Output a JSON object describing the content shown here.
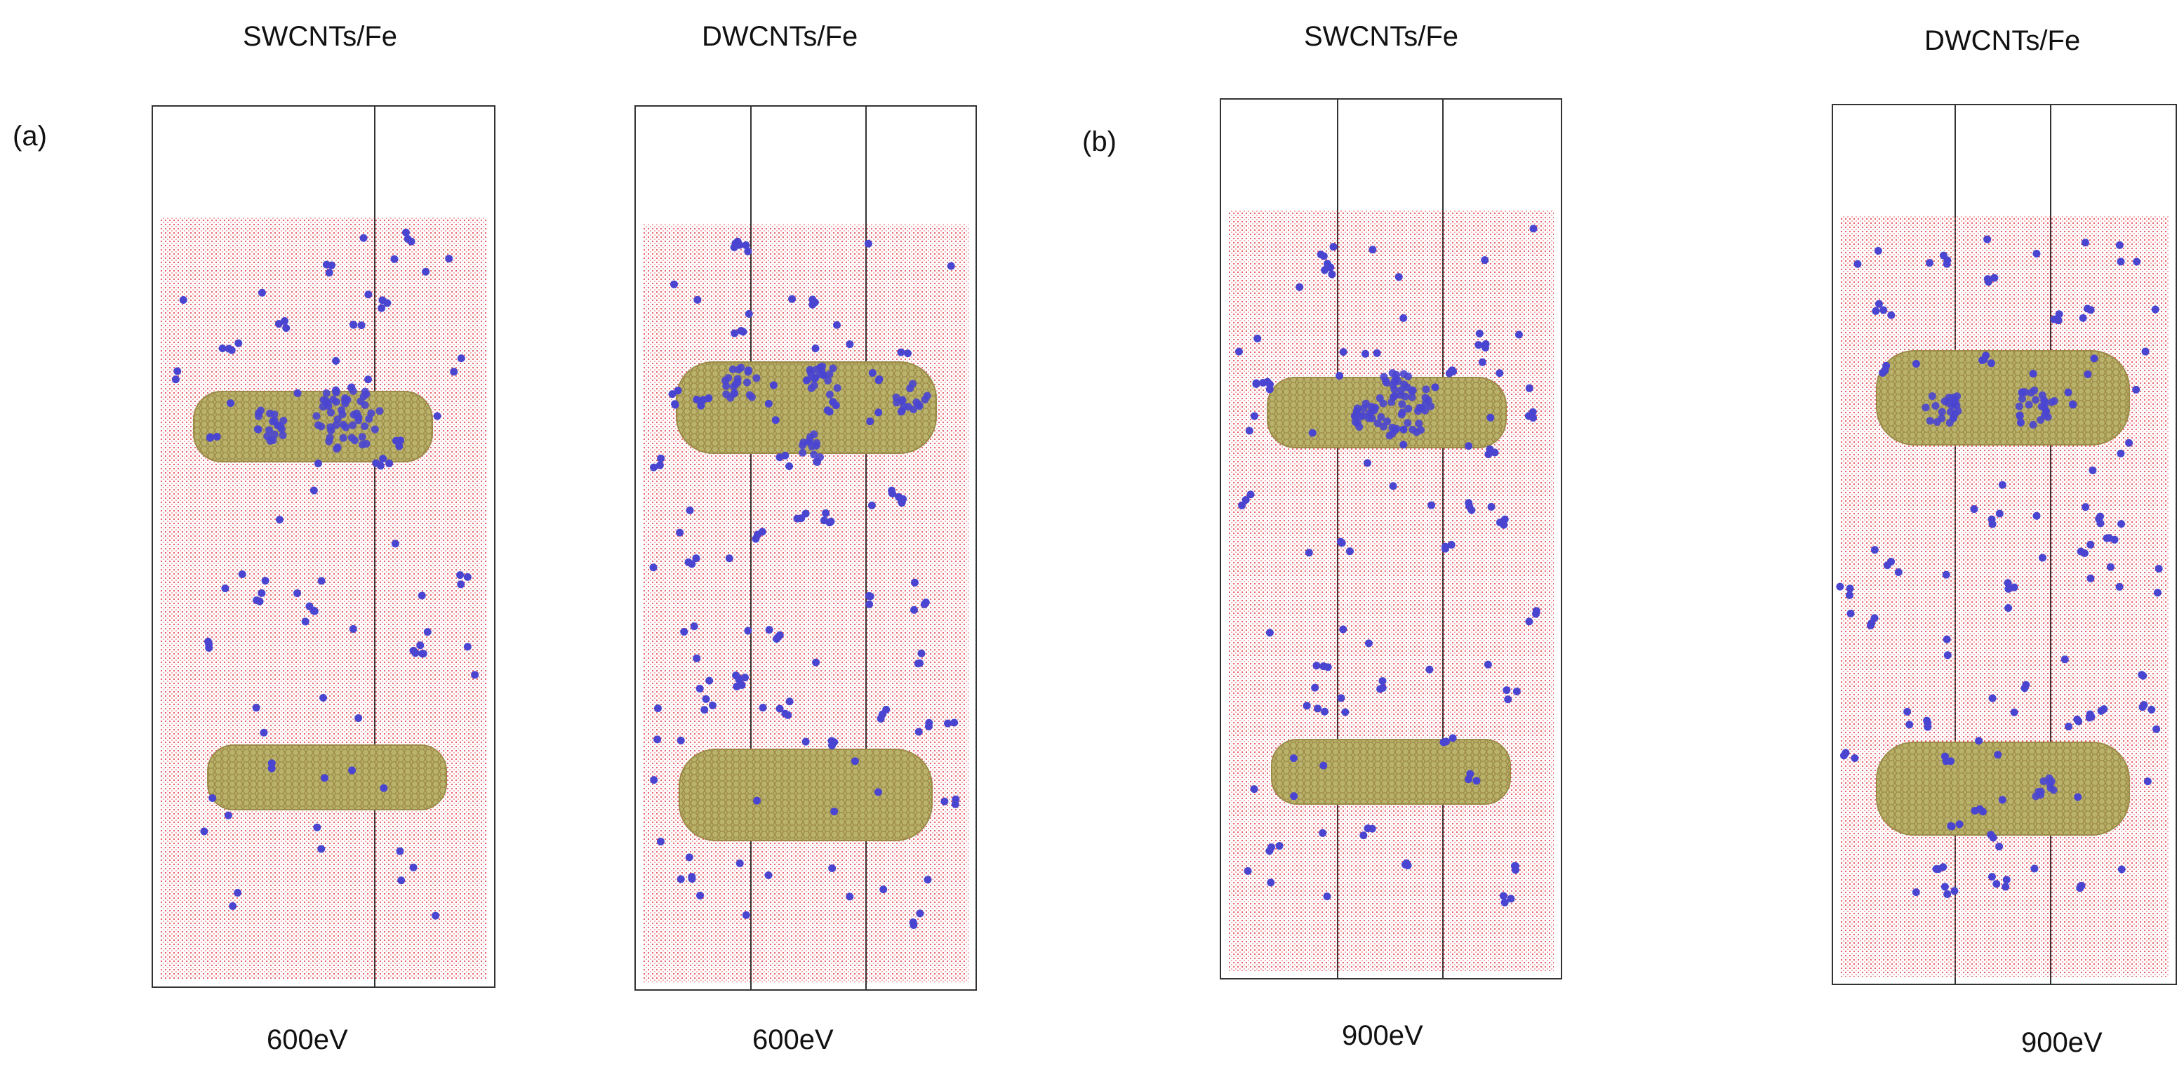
{
  "figure": {
    "panel_a": {
      "letter": "(a)",
      "left_title": "SWCNTs/Fe",
      "left_energy": "600eV",
      "right_title": "DWCNTs/Fe",
      "right_energy": "600eV"
    },
    "panel_b": {
      "letter": "(b)",
      "left_title": "SWCNTs/Fe",
      "left_energy": "900eV",
      "right_title": "DWCNTs/Fe",
      "right_energy": "900eV"
    }
  },
  "colors": {
    "fe_lattice": "#e0303a",
    "nanotube": "#b9b26a",
    "nanotube_bond": "#9c8a48",
    "pka_atoms": "#4a45d0",
    "frame": "#333333"
  }
}
